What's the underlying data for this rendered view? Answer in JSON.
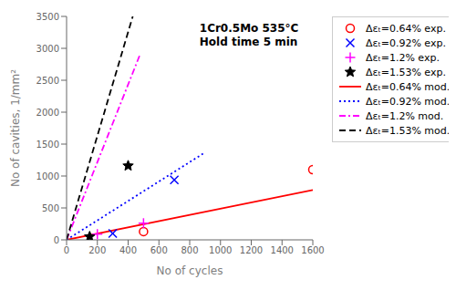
{
  "chart_data": {
    "type": "line",
    "title": "1Cr0.5Mo 535°C\nHold time 5 min",
    "x_label": "No of cycles",
    "y_label": "No of cavities, 1/mm²",
    "xlim": [
      0,
      1600
    ],
    "ylim": [
      0,
      3500
    ],
    "xticks": [
      0,
      200,
      400,
      600,
      800,
      1000,
      1200,
      1400,
      1600
    ],
    "yticks": [
      0,
      500,
      1000,
      1500,
      2000,
      2500,
      3000,
      3500
    ],
    "grid": false,
    "legend": "right",
    "series": [
      {
        "name": "Δεₜ=0.64% exp.",
        "type": "scatter",
        "color": "red",
        "marker": "circle",
        "x": [
          500,
          1600
        ],
        "values": [
          130,
          1100
        ]
      },
      {
        "name": "Δεₜ=0.92% exp.",
        "type": "scatter",
        "color": "blue",
        "marker": "x",
        "x": [
          300,
          700
        ],
        "values": [
          100,
          940
        ]
      },
      {
        "name": "Δεₜ=1.2% exp.",
        "type": "scatter",
        "color": "magenta",
        "marker": "plus",
        "x": [
          200,
          500
        ],
        "values": [
          90,
          260
        ]
      },
      {
        "name": "Δεₜ=1.53% exp.",
        "type": "scatter",
        "color": "black",
        "marker": "star",
        "x": [
          150,
          400
        ],
        "values": [
          50,
          1160
        ]
      },
      {
        "name": "Δεₜ=0.64% mod.",
        "type": "line",
        "color": "red",
        "line_style": "solid",
        "x": [
          0,
          1600
        ],
        "values": [
          0,
          780
        ]
      },
      {
        "name": "Δεₜ=0.92% mod.",
        "type": "line",
        "color": "blue",
        "line_style": "dotted",
        "x": [
          0,
          900
        ],
        "values": [
          0,
          1370
        ]
      },
      {
        "name": "Δεₜ=1.2% mod.",
        "type": "line",
        "color": "magenta",
        "line_style": "dashdot",
        "x": [
          0,
          480
        ],
        "values": [
          0,
          2920
        ]
      },
      {
        "name": "Δεₜ=1.53% mod.",
        "type": "line",
        "color": "black",
        "line_style": "dashed",
        "x": [
          0,
          430
        ],
        "values": [
          0,
          3500
        ]
      }
    ]
  }
}
